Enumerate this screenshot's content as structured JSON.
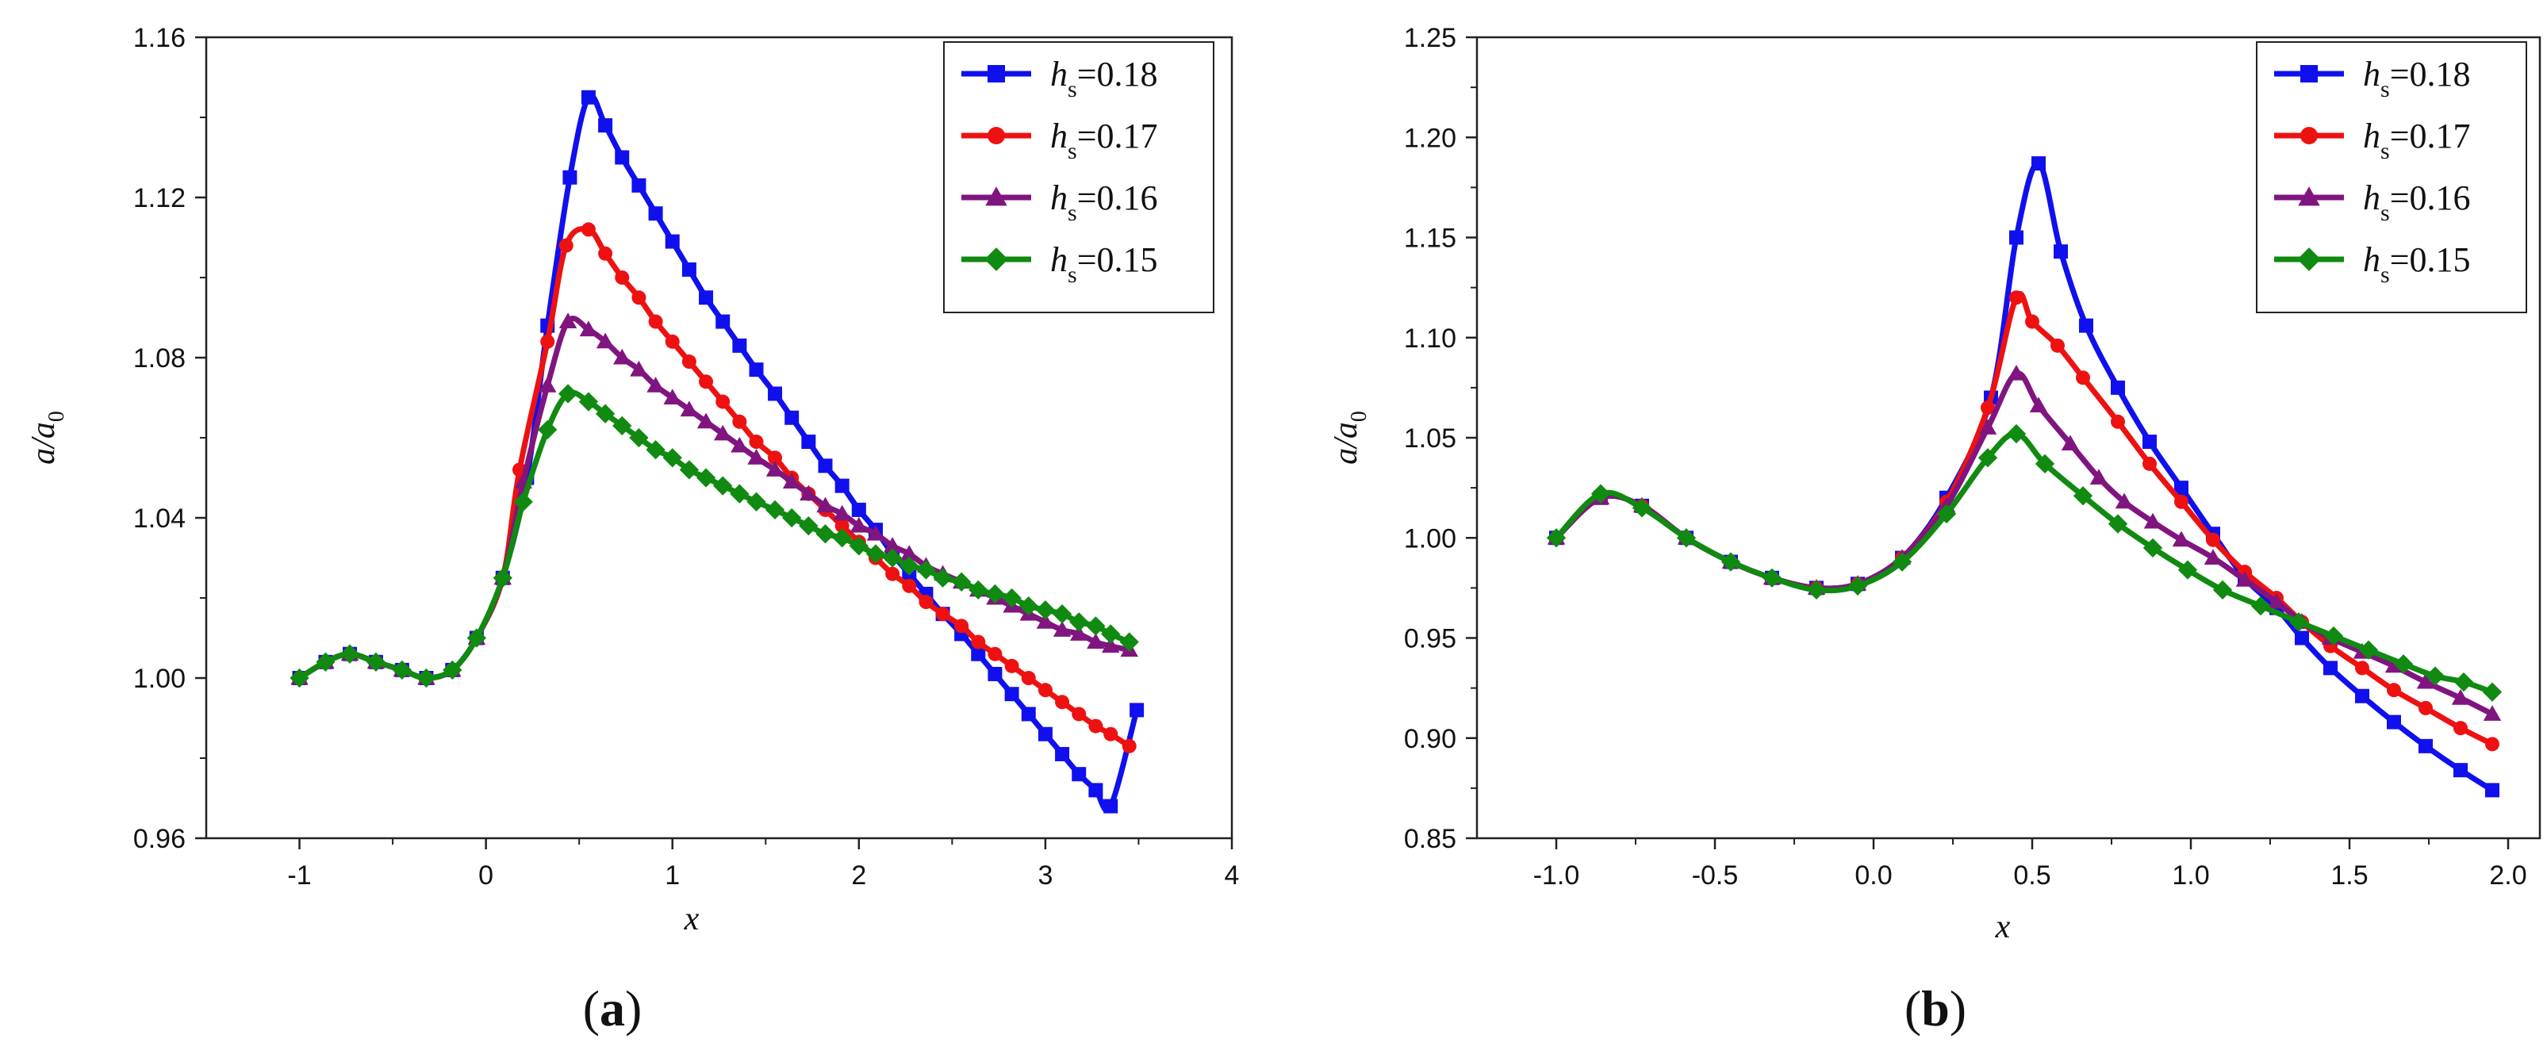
{
  "figure": {
    "panels": [
      "(a)",
      "(b)"
    ]
  },
  "chart_data": [
    {
      "type": "line",
      "panel_label": "(a)",
      "xlabel": "x",
      "ylabel_main": "a/a",
      "ylabel_sub": "0",
      "xlim": [
        -1.5,
        4.0
      ],
      "ylim": [
        0.96,
        1.16
      ],
      "x_ticks": [
        -1,
        0,
        1,
        2,
        3,
        4
      ],
      "x_tick_labels": [
        "-1",
        "0",
        "1",
        "2",
        "3",
        "4"
      ],
      "y_ticks": [
        0.96,
        1.0,
        1.04,
        1.08,
        1.12,
        1.16
      ],
      "y_tick_labels": [
        "0.96",
        "1.00",
        "1.04",
        "1.08",
        "1.12",
        "1.16"
      ],
      "legend_position": "top-right",
      "series": [
        {
          "name": "hs=0.18",
          "legend_var": "h",
          "legend_sub": "s",
          "legend_val": "=0.18",
          "color": "#1010ee",
          "marker": "square",
          "x": [
            -1.0,
            -0.86,
            -0.73,
            -0.59,
            -0.45,
            -0.32,
            -0.18,
            -0.05,
            0.09,
            0.22,
            0.33,
            0.45,
            0.55,
            0.64,
            0.73,
            0.82,
            0.91,
            1.0,
            1.09,
            1.18,
            1.27,
            1.36,
            1.45,
            1.55,
            1.64,
            1.73,
            1.82,
            1.91,
            2.0,
            2.09,
            2.18,
            2.27,
            2.36,
            2.45,
            2.55,
            2.64,
            2.73,
            2.82,
            2.91,
            3.0,
            3.09,
            3.18,
            3.27,
            3.35,
            3.49
          ],
          "y": [
            1.0,
            1.004,
            1.006,
            1.004,
            1.002,
            1.0,
            1.002,
            1.01,
            1.025,
            1.05,
            1.088,
            1.125,
            1.145,
            1.138,
            1.13,
            1.123,
            1.116,
            1.109,
            1.102,
            1.095,
            1.089,
            1.083,
            1.077,
            1.071,
            1.065,
            1.059,
            1.053,
            1.048,
            1.042,
            1.037,
            1.031,
            1.026,
            1.021,
            1.016,
            1.011,
            1.006,
            1.001,
            0.996,
            0.991,
            0.986,
            0.981,
            0.976,
            0.972,
            0.968,
            0.992
          ]
        },
        {
          "name": "hs=0.17",
          "legend_var": "h",
          "legend_sub": "s",
          "legend_val": "=0.17",
          "color": "#ee1111",
          "marker": "circle",
          "x": [
            -1.0,
            -0.86,
            -0.73,
            -0.59,
            -0.45,
            -0.32,
            -0.18,
            -0.05,
            0.09,
            0.18,
            0.33,
            0.43,
            0.55,
            0.64,
            0.73,
            0.82,
            0.91,
            1.0,
            1.09,
            1.18,
            1.27,
            1.36,
            1.45,
            1.55,
            1.64,
            1.73,
            1.82,
            1.91,
            2.0,
            2.09,
            2.18,
            2.27,
            2.36,
            2.45,
            2.55,
            2.64,
            2.73,
            2.82,
            2.91,
            3.0,
            3.09,
            3.18,
            3.27,
            3.35,
            3.45
          ],
          "y": [
            1.0,
            1.004,
            1.006,
            1.004,
            1.002,
            1.0,
            1.002,
            1.01,
            1.025,
            1.052,
            1.084,
            1.108,
            1.112,
            1.106,
            1.1,
            1.095,
            1.089,
            1.084,
            1.079,
            1.074,
            1.069,
            1.064,
            1.059,
            1.055,
            1.05,
            1.046,
            1.042,
            1.038,
            1.034,
            1.03,
            1.026,
            1.023,
            1.019,
            1.016,
            1.013,
            1.009,
            1.006,
            1.003,
            1.0,
            0.997,
            0.994,
            0.991,
            0.988,
            0.986,
            0.983
          ]
        },
        {
          "name": "hs=0.16",
          "legend_var": "h",
          "legend_sub": "s",
          "legend_val": "=0.16",
          "color": "#801580",
          "marker": "triangle",
          "x": [
            -1.0,
            -0.86,
            -0.73,
            -0.59,
            -0.45,
            -0.32,
            -0.18,
            -0.05,
            0.09,
            0.2,
            0.33,
            0.44,
            0.55,
            0.64,
            0.73,
            0.82,
            0.91,
            1.0,
            1.09,
            1.18,
            1.27,
            1.36,
            1.45,
            1.55,
            1.64,
            1.73,
            1.82,
            1.91,
            2.0,
            2.09,
            2.18,
            2.27,
            2.36,
            2.45,
            2.55,
            2.64,
            2.73,
            2.82,
            2.91,
            3.0,
            3.09,
            3.18,
            3.27,
            3.35,
            3.45
          ],
          "y": [
            1.0,
            1.004,
            1.006,
            1.004,
            1.002,
            1.0,
            1.002,
            1.01,
            1.025,
            1.049,
            1.073,
            1.089,
            1.087,
            1.084,
            1.08,
            1.077,
            1.073,
            1.07,
            1.067,
            1.064,
            1.061,
            1.058,
            1.055,
            1.052,
            1.049,
            1.046,
            1.043,
            1.041,
            1.038,
            1.036,
            1.033,
            1.031,
            1.028,
            1.026,
            1.024,
            1.022,
            1.02,
            1.018,
            1.016,
            1.014,
            1.012,
            1.011,
            1.009,
            1.008,
            1.007
          ]
        },
        {
          "name": "hs=0.15",
          "legend_var": "h",
          "legend_sub": "s",
          "legend_val": "=0.15",
          "color": "#108a10",
          "marker": "diamond",
          "x": [
            -1.0,
            -0.86,
            -0.73,
            -0.59,
            -0.45,
            -0.32,
            -0.18,
            -0.05,
            0.09,
            0.2,
            0.33,
            0.44,
            0.55,
            0.64,
            0.73,
            0.82,
            0.91,
            1.0,
            1.09,
            1.18,
            1.27,
            1.36,
            1.45,
            1.55,
            1.64,
            1.73,
            1.82,
            1.91,
            2.0,
            2.09,
            2.18,
            2.27,
            2.36,
            2.45,
            2.55,
            2.64,
            2.73,
            2.82,
            2.91,
            3.0,
            3.09,
            3.18,
            3.27,
            3.35,
            3.45
          ],
          "y": [
            1.0,
            1.004,
            1.006,
            1.004,
            1.002,
            1.0,
            1.002,
            1.01,
            1.025,
            1.044,
            1.062,
            1.071,
            1.069,
            1.066,
            1.063,
            1.06,
            1.057,
            1.055,
            1.052,
            1.05,
            1.048,
            1.046,
            1.044,
            1.042,
            1.04,
            1.038,
            1.036,
            1.035,
            1.033,
            1.031,
            1.03,
            1.028,
            1.027,
            1.025,
            1.024,
            1.022,
            1.021,
            1.02,
            1.018,
            1.017,
            1.016,
            1.014,
            1.013,
            1.011,
            1.009
          ]
        }
      ]
    },
    {
      "type": "line",
      "panel_label": "(b)",
      "xlabel": "x",
      "ylabel_main": "a/a",
      "ylabel_sub": "0",
      "xlim": [
        -1.25,
        2.1
      ],
      "ylim": [
        0.85,
        1.25
      ],
      "x_ticks": [
        -1.0,
        -0.5,
        0.0,
        0.5,
        1.0,
        1.5,
        2.0
      ],
      "x_tick_labels": [
        "-1.0",
        "-0.5",
        "0.0",
        "0.5",
        "1.0",
        "1.5",
        "2.0"
      ],
      "y_ticks": [
        0.85,
        0.9,
        0.95,
        1.0,
        1.05,
        1.1,
        1.15,
        1.2,
        1.25
      ],
      "y_tick_labels": [
        "0.85",
        "0.90",
        "0.95",
        "1.00",
        "1.05",
        "1.10",
        "1.15",
        "1.20",
        "1.25"
      ],
      "legend_position": "top-right",
      "series": [
        {
          "name": "hs=0.18",
          "legend_var": "h",
          "legend_sub": "s",
          "legend_val": "=0.18",
          "color": "#1010ee",
          "marker": "square",
          "x": [
            -1.0,
            -0.86,
            -0.73,
            -0.59,
            -0.45,
            -0.32,
            -0.18,
            -0.05,
            0.09,
            0.23,
            0.37,
            0.45,
            0.52,
            0.59,
            0.67,
            0.77,
            0.87,
            0.97,
            1.07,
            1.17,
            1.27,
            1.35,
            1.44,
            1.54,
            1.64,
            1.74,
            1.85,
            1.95
          ],
          "y": [
            1.0,
            1.02,
            1.016,
            1.0,
            0.988,
            0.98,
            0.975,
            0.977,
            0.99,
            1.02,
            1.07,
            1.15,
            1.187,
            1.143,
            1.106,
            1.075,
            1.048,
            1.025,
            1.002,
            0.98,
            0.965,
            0.95,
            0.935,
            0.921,
            0.908,
            0.896,
            0.884,
            0.874
          ]
        },
        {
          "name": "hs=0.17",
          "legend_var": "h",
          "legend_sub": "s",
          "legend_val": "=0.17",
          "color": "#ee1111",
          "marker": "circle",
          "x": [
            -1.0,
            -0.86,
            -0.73,
            -0.59,
            -0.45,
            -0.32,
            -0.18,
            -0.05,
            0.09,
            0.23,
            0.36,
            0.45,
            0.5,
            0.58,
            0.66,
            0.77,
            0.87,
            0.97,
            1.07,
            1.17,
            1.27,
            1.35,
            1.44,
            1.54,
            1.64,
            1.74,
            1.85,
            1.95
          ],
          "y": [
            1.0,
            1.02,
            1.016,
            1.0,
            0.988,
            0.98,
            0.975,
            0.977,
            0.99,
            1.018,
            1.065,
            1.12,
            1.108,
            1.096,
            1.08,
            1.058,
            1.037,
            1.018,
            0.999,
            0.983,
            0.97,
            0.958,
            0.946,
            0.935,
            0.924,
            0.915,
            0.905,
            0.897
          ]
        },
        {
          "name": "hs=0.16",
          "legend_var": "h",
          "legend_sub": "s",
          "legend_val": "=0.16",
          "color": "#801580",
          "marker": "triangle",
          "x": [
            -1.0,
            -0.86,
            -0.73,
            -0.59,
            -0.45,
            -0.32,
            -0.18,
            -0.05,
            0.09,
            0.23,
            0.36,
            0.45,
            0.52,
            0.62,
            0.71,
            0.79,
            0.88,
            0.97,
            1.07,
            1.17,
            1.27,
            1.35,
            1.44,
            1.54,
            1.64,
            1.74,
            1.85,
            1.95
          ],
          "y": [
            1.0,
            1.02,
            1.016,
            1.0,
            0.988,
            0.98,
            0.975,
            0.977,
            0.99,
            1.016,
            1.055,
            1.082,
            1.066,
            1.047,
            1.03,
            1.018,
            1.008,
            0.999,
            0.99,
            0.979,
            0.968,
            0.958,
            0.95,
            0.943,
            0.936,
            0.928,
            0.92,
            0.912
          ]
        },
        {
          "name": "hs=0.15",
          "legend_var": "h",
          "legend_sub": "s",
          "legend_val": "=0.15",
          "color": "#108a10",
          "marker": "diamond",
          "x": [
            -1.0,
            -0.86,
            -0.73,
            -0.59,
            -0.45,
            -0.32,
            -0.18,
            -0.05,
            0.09,
            0.23,
            0.36,
            0.45,
            0.54,
            0.66,
            0.77,
            0.88,
            0.99,
            1.1,
            1.22,
            1.34,
            1.45,
            1.56,
            1.67,
            1.77,
            1.86,
            1.95
          ],
          "y": [
            1.0,
            1.022,
            1.015,
            1.0,
            0.988,
            0.98,
            0.974,
            0.976,
            0.988,
            1.012,
            1.04,
            1.052,
            1.037,
            1.021,
            1.007,
            0.995,
            0.984,
            0.974,
            0.966,
            0.958,
            0.951,
            0.944,
            0.937,
            0.931,
            0.928,
            0.923
          ]
        }
      ]
    }
  ]
}
